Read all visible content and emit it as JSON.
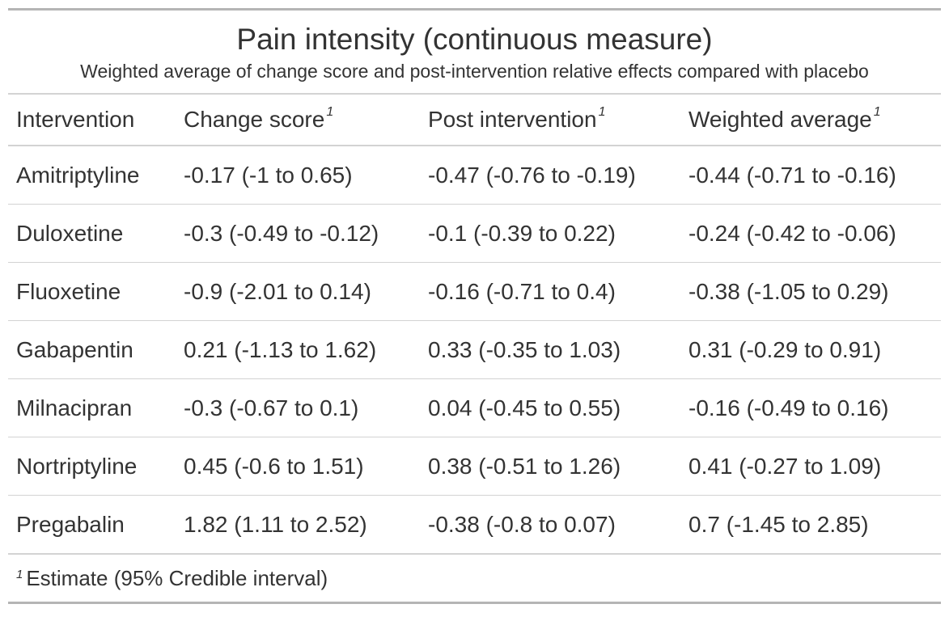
{
  "table": {
    "title": "Pain intensity (continuous measure)",
    "subtitle": "Weighted average of change score and post-intervention relative effects compared with placebo",
    "columns": [
      {
        "label": "Intervention",
        "marker": ""
      },
      {
        "label": "Change score",
        "marker": "1"
      },
      {
        "label": "Post intervention",
        "marker": "1"
      },
      {
        "label": "Weighted average",
        "marker": "1"
      }
    ],
    "rows": [
      [
        "Amitriptyline",
        "-0.17 (-1 to 0.65)",
        "-0.47 (-0.76 to -0.19)",
        "-0.44 (-0.71 to -0.16)"
      ],
      [
        "Duloxetine",
        "-0.3 (-0.49 to -0.12)",
        "-0.1 (-0.39 to 0.22)",
        "-0.24 (-0.42 to -0.06)"
      ],
      [
        "Fluoxetine",
        "-0.9 (-2.01 to 0.14)",
        "-0.16 (-0.71 to 0.4)",
        "-0.38 (-1.05 to 0.29)"
      ],
      [
        "Gabapentin",
        "0.21 (-1.13 to 1.62)",
        "0.33 (-0.35 to 1.03)",
        "0.31 (-0.29 to 0.91)"
      ],
      [
        "Milnacipran",
        "-0.3 (-0.67 to 0.1)",
        "0.04 (-0.45 to 0.55)",
        "-0.16 (-0.49 to 0.16)"
      ],
      [
        "Nortriptyline",
        "0.45 (-0.6 to 1.51)",
        "0.38 (-0.51 to 1.26)",
        "0.41 (-0.27 to 1.09)"
      ],
      [
        "Pregabalin",
        "1.82 (1.11 to 2.52)",
        "-0.38 (-0.8 to 0.07)",
        "0.7 (-1.45 to 2.85)"
      ]
    ],
    "footnote": {
      "marker": "1",
      "text": "Estimate (95% Credible interval)"
    },
    "colors": {
      "text": "#333333",
      "rule_heavy": "#b5b5b5",
      "rule_light": "#d3d3d3"
    }
  }
}
